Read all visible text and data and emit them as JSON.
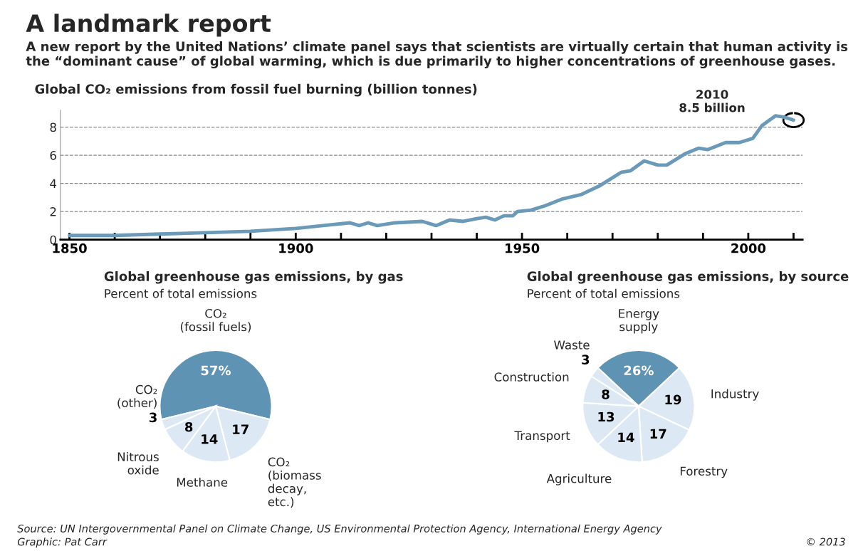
{
  "chart_data": [
    {
      "type": "line",
      "title": "A landmark report",
      "subtitle": "A new report by the United Nations’ climate panel says that scientists are virtually certain that human activity is the “dominant cause” of global warming, which is due primarily to higher concentrations of greenhouse gases.",
      "ylabel": "Global CO₂ emissions from fossil fuel burning (billion tonnes)",
      "x": [
        1850,
        1860,
        1870,
        1880,
        1890,
        1900,
        1906,
        1912,
        1914,
        1916,
        1918,
        1920,
        1922,
        1928,
        1931,
        1934,
        1937,
        1940,
        1942,
        1944,
        1946,
        1948,
        1949,
        1952,
        1955,
        1959,
        1963,
        1967,
        1969,
        1972,
        1974,
        1977,
        1980,
        1982,
        1986,
        1989,
        1991,
        1995,
        1998,
        2001,
        2003,
        2006,
        2008,
        2010
      ],
      "series": [
        {
          "color": "#6a9ab8",
          "values": [
            0.3,
            0.3,
            0.4,
            0.5,
            0.6,
            0.8,
            1.0,
            1.2,
            1.0,
            1.2,
            1.0,
            1.1,
            1.2,
            1.3,
            1.0,
            1.4,
            1.3,
            1.5,
            1.6,
            1.4,
            1.7,
            1.7,
            2.0,
            2.1,
            2.4,
            2.9,
            3.2,
            3.8,
            4.2,
            4.8,
            4.9,
            5.6,
            5.3,
            5.3,
            6.1,
            6.5,
            6.4,
            6.9,
            6.9,
            7.2,
            8.1,
            8.8,
            8.7,
            8.5
          ]
        }
      ],
      "xlim": [
        1848,
        2012
      ],
      "ylim": [
        0,
        9.2
      ],
      "xticks": [
        1850,
        {
          "value": 1860,
          "label": null
        },
        {
          "value": 1870,
          "label": null
        },
        {
          "value": 1880,
          "label": null
        },
        {
          "value": 1890,
          "label": null
        },
        1900,
        {
          "value": 1910,
          "label": null
        },
        {
          "value": 1920,
          "label": null
        },
        {
          "value": 1930,
          "label": null
        },
        {
          "value": 1940,
          "label": null
        },
        1950,
        {
          "value": 1960,
          "label": null
        },
        {
          "value": 1970,
          "label": null
        },
        {
          "value": 1980,
          "label": null
        },
        {
          "value": 1990,
          "label": null
        },
        2000,
        {
          "value": 2010,
          "label": null
        }
      ],
      "yticks": [
        0,
        2,
        4,
        6,
        8
      ],
      "grid": "y",
      "legend": false,
      "marker": "none",
      "line_style": "solid",
      "annotations": [
        {
          "text": "2010\n8.5 billion",
          "x": 2010,
          "y": 8.5
        }
      ]
    },
    {
      "type": "pie",
      "title": "Global greenhouse gas emissions, by gas",
      "subtitle": "Percent of total emissions",
      "categories": [
        "CO₂\n(fossil fuels)",
        "CO₂\n(biomass\ndecay,\netc.)",
        "Methane",
        "Nitrous\noxide",
        "CO₂\n(other)"
      ],
      "values": [
        57,
        17,
        14,
        8,
        3
      ],
      "colors": [
        "#5f93b4",
        "#dce9f4",
        "#dce9f4",
        "#dce9f4",
        "#dce9f4"
      ],
      "value_labels": [
        "57%",
        "17",
        "14",
        "8",
        "3"
      ]
    },
    {
      "type": "pie",
      "title": "Global greenhouse gas emissions, by source",
      "subtitle": "Percent of total emissions",
      "categories": [
        "Energy\nsupply",
        "Industry",
        "Forestry",
        "Agriculture",
        "Transport",
        "Construction",
        "Waste"
      ],
      "values": [
        26,
        19,
        17,
        14,
        13,
        8,
        3
      ],
      "colors": [
        "#5f93b4",
        "#dce9f4",
        "#dce9f4",
        "#dce9f4",
        "#dce9f4",
        "#dce9f4",
        "#dce9f4"
      ],
      "value_labels": [
        "26%",
        "19",
        "17",
        "14",
        "13",
        "8",
        "3"
      ],
      "annotations": [
        "Source: UN Intergovernmental Panel on Climate Change, US Environmental Protection Agency, International Energy Agency",
        "Graphic: Pat Carr",
        "© 2013"
      ]
    }
  ]
}
